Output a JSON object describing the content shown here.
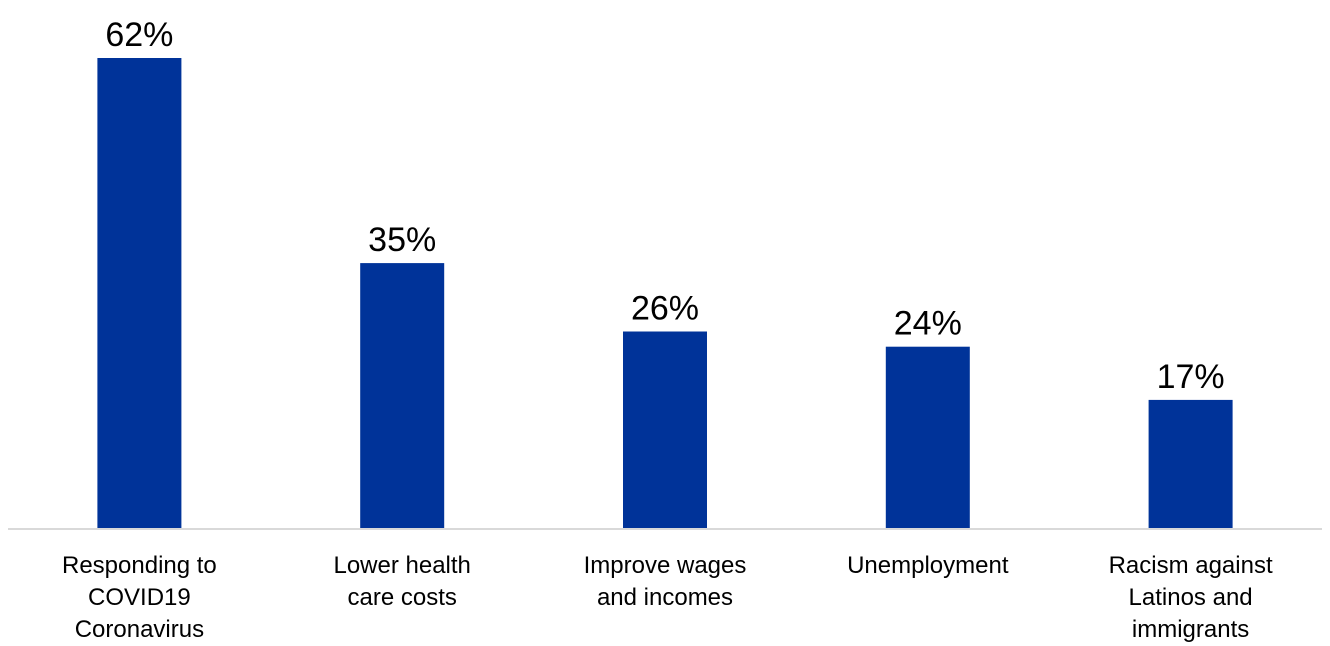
{
  "chart_data": {
    "type": "bar",
    "categories": [
      [
        "Responding to",
        "COVID19",
        "Coronavirus"
      ],
      [
        "Lower health",
        "care costs"
      ],
      [
        "Improve wages",
        "and incomes"
      ],
      [
        "Unemployment"
      ],
      [
        "Racism against",
        "Latinos and",
        "immigrants"
      ]
    ],
    "values": [
      62,
      35,
      26,
      24,
      17
    ],
    "value_labels": [
      "62%",
      "35%",
      "26%",
      "24%",
      "17%"
    ],
    "ylim": [
      0,
      62
    ],
    "grid": false,
    "legend": "none"
  },
  "colors": {
    "bar": "#003399",
    "axis": "#d9d9d9",
    "text": "#000000"
  }
}
